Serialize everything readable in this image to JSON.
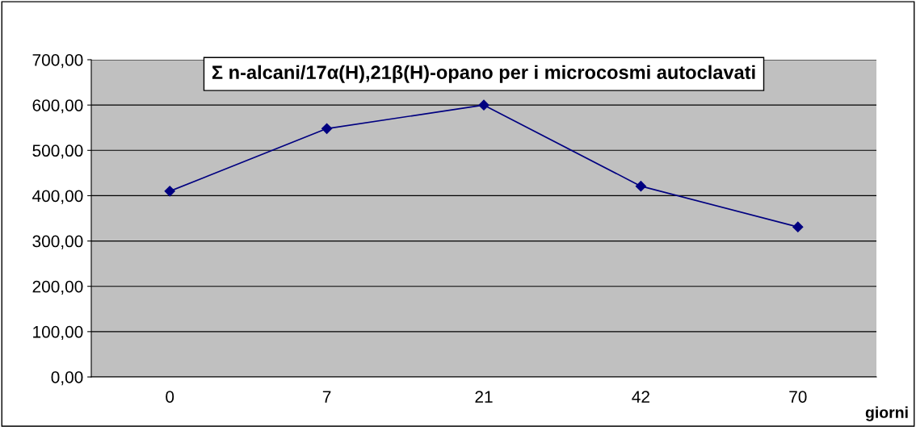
{
  "chart_data": {
    "type": "line",
    "title": "Σ n-alcani/17α(H),21β(H)-opano per i microcosmi autoclavati",
    "xlabel": "giorni",
    "categories": [
      "0",
      "7",
      "21",
      "42",
      "70"
    ],
    "series": [
      {
        "color": "#000080",
        "values": [
          410,
          548,
          600,
          421,
          331
        ]
      }
    ],
    "ylim": [
      0,
      700
    ],
    "yticks": [
      {
        "value": 0,
        "label": "0,00"
      },
      {
        "value": 100,
        "label": "100,00"
      },
      {
        "value": 200,
        "label": "200,00"
      },
      {
        "value": 300,
        "label": "300,00"
      },
      {
        "value": 400,
        "label": "400,00"
      },
      {
        "value": 500,
        "label": "500,00"
      },
      {
        "value": 600,
        "label": "600,00"
      },
      {
        "value": 700,
        "label": "700,00"
      }
    ],
    "grid": "y",
    "marker": "diamond",
    "line_style": "solid",
    "legend": false
  }
}
